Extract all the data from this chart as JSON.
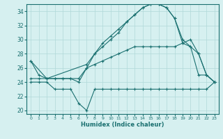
{
  "xlabel": "Humidex (Indice chaleur)",
  "background_color": "#d6f0f0",
  "grid_color": "#b0d8d8",
  "line_color": "#1a7070",
  "xlim": [
    -0.5,
    23.5
  ],
  "ylim": [
    19.5,
    35.0
  ],
  "xticks": [
    0,
    1,
    2,
    3,
    4,
    5,
    6,
    7,
    8,
    9,
    10,
    11,
    12,
    13,
    14,
    15,
    16,
    17,
    18,
    19,
    20,
    21,
    22,
    23
  ],
  "yticks": [
    20,
    22,
    24,
    26,
    28,
    30,
    32,
    34
  ],
  "line1": {
    "x": [
      0,
      1,
      2,
      3,
      4,
      5,
      6,
      7,
      8,
      9,
      10,
      11,
      12,
      13,
      14,
      15,
      16,
      17,
      18,
      19,
      20,
      21,
      22,
      23
    ],
    "y": [
      27,
      25,
      24.5,
      24.5,
      24.5,
      24.5,
      24,
      26,
      28,
      29.5,
      30.5,
      31.5,
      32.5,
      33.5,
      34.5,
      35,
      35,
      34.5,
      33,
      30,
      29,
      25,
      25,
      24
    ]
  },
  "line2": {
    "x": [
      0,
      1,
      2,
      3,
      4,
      5,
      6,
      7,
      8,
      9,
      10,
      11,
      12,
      13,
      14,
      15,
      16,
      17,
      18,
      19,
      20,
      21,
      22,
      23
    ],
    "y": [
      24,
      24,
      24,
      23,
      23,
      23,
      21,
      20,
      23,
      23,
      23,
      23,
      23,
      23,
      23,
      23,
      23,
      23,
      23,
      23,
      23,
      23,
      23,
      24
    ]
  },
  "line3": {
    "x": [
      0,
      1,
      2,
      3,
      4,
      5,
      6,
      7,
      8,
      9,
      10,
      11,
      12,
      13,
      14,
      15,
      16,
      17,
      18,
      19,
      20,
      21,
      22,
      23
    ],
    "y": [
      24.5,
      24.5,
      24.5,
      24.5,
      24.5,
      24.5,
      24.5,
      26,
      26.5,
      27,
      27.5,
      28,
      28.5,
      29,
      29,
      29,
      29,
      29,
      29,
      29.5,
      29,
      28,
      25,
      24
    ]
  },
  "line4": {
    "x": [
      0,
      2,
      7,
      8,
      9,
      10,
      11,
      12,
      13,
      14,
      15,
      16,
      17,
      18,
      19,
      20,
      21,
      22,
      23
    ],
    "y": [
      27,
      24.5,
      26.5,
      28,
      29,
      30,
      31,
      32.5,
      33.5,
      34.5,
      35,
      35,
      34.5,
      33,
      29.5,
      30,
      28,
      25,
      24
    ]
  }
}
